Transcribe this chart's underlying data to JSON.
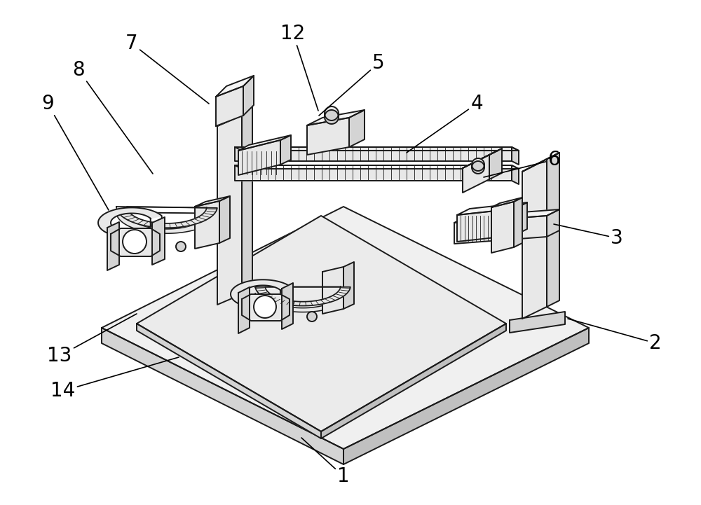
{
  "bg_color": "#ffffff",
  "line_color": "#1a1a1a",
  "line_width": 1.4,
  "fill_light": "#f5f5f5",
  "fill_mid": "#e8e8e8",
  "fill_dark": "#d4d4d4",
  "fill_darker": "#c0c0c0",
  "label_fontsize": 20,
  "figsize": [
    10.0,
    7.21
  ],
  "dpi": 100,
  "labels": [
    [
      "1",
      490,
      680,
      430,
      625
    ],
    [
      "2",
      935,
      490,
      810,
      455
    ],
    [
      "3",
      880,
      340,
      790,
      320
    ],
    [
      "4",
      680,
      148,
      580,
      218
    ],
    [
      "5",
      540,
      90,
      455,
      165
    ],
    [
      "6",
      790,
      228,
      690,
      253
    ],
    [
      "7",
      188,
      62,
      298,
      148
    ],
    [
      "8",
      112,
      100,
      218,
      248
    ],
    [
      "9",
      68,
      148,
      155,
      300
    ],
    [
      "12",
      418,
      48,
      454,
      158
    ],
    [
      "13",
      85,
      508,
      195,
      448
    ],
    [
      "14",
      90,
      558,
      255,
      510
    ]
  ]
}
